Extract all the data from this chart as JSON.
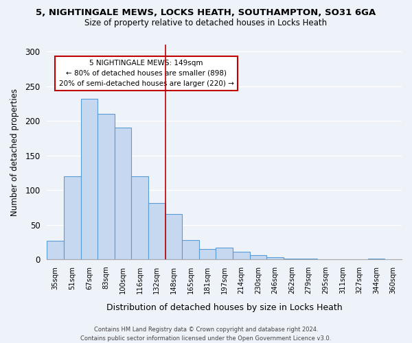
{
  "title": "5, NIGHTINGALE MEWS, LOCKS HEATH, SOUTHAMPTON, SO31 6GA",
  "subtitle": "Size of property relative to detached houses in Locks Heath",
  "xlabel": "Distribution of detached houses by size in Locks Heath",
  "ylabel": "Number of detached properties",
  "bar_labels": [
    "35sqm",
    "51sqm",
    "67sqm",
    "83sqm",
    "100sqm",
    "116sqm",
    "132sqm",
    "148sqm",
    "165sqm",
    "181sqm",
    "197sqm",
    "214sqm",
    "230sqm",
    "246sqm",
    "262sqm",
    "279sqm",
    "295sqm",
    "311sqm",
    "327sqm",
    "344sqm",
    "360sqm"
  ],
  "bar_heights": [
    27,
    120,
    232,
    210,
    190,
    120,
    81,
    65,
    28,
    15,
    17,
    11,
    6,
    3,
    1,
    1,
    0,
    0,
    0,
    1,
    0
  ],
  "bar_color": "#c5d8f0",
  "bar_edge_color": "#5b9bd5",
  "vline_x_index": 7,
  "vline_color": "#c00000",
  "annotation_line1": "5 NIGHTINGALE MEWS: 149sqm",
  "annotation_line2": "← 80% of detached houses are smaller (898)",
  "annotation_line3": "20% of semi-detached houses are larger (220) →",
  "box_color": "#c00000",
  "ylim": [
    0,
    310
  ],
  "yticks": [
    0,
    50,
    100,
    150,
    200,
    250,
    300
  ],
  "footer_line1": "Contains HM Land Registry data © Crown copyright and database right 2024.",
  "footer_line2": "Contains public sector information licensed under the Open Government Licence v3.0.",
  "bg_color": "#eef2f9"
}
